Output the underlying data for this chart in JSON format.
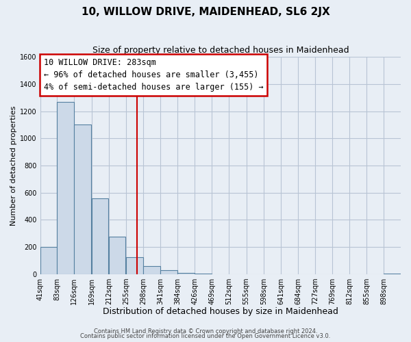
{
  "title": "10, WILLOW DRIVE, MAIDENHEAD, SL6 2JX",
  "subtitle": "Size of property relative to detached houses in Maidenhead",
  "xlabel": "Distribution of detached houses by size in Maidenhead",
  "ylabel": "Number of detached properties",
  "footnote1": "Contains HM Land Registry data © Crown copyright and database right 2024.",
  "footnote2": "Contains public sector information licensed under the Open Government Licence v3.0.",
  "bin_edges": [
    41,
    83,
    126,
    169,
    212,
    255,
    298,
    341,
    384,
    426,
    469,
    512,
    555,
    598,
    641,
    684,
    727,
    769,
    812,
    855,
    898
  ],
  "bin_counts": [
    200,
    1270,
    1100,
    560,
    275,
    125,
    60,
    30,
    10,
    5,
    0,
    0,
    0,
    0,
    0,
    0,
    0,
    0,
    0,
    0,
    5
  ],
  "bar_color": "#ccd9e8",
  "bar_edge_color": "#5580a0",
  "property_size": 283,
  "property_line_color": "#cc0000",
  "annotation_text_line1": "10 WILLOW DRIVE: 283sqm",
  "annotation_text_line2": "← 96% of detached houses are smaller (3,455)",
  "annotation_text_line3": "4% of semi-detached houses are larger (155) →",
  "annotation_box_facecolor": "#ffffff",
  "annotation_box_edgecolor": "#cc0000",
  "ylim": [
    0,
    1600
  ],
  "xlim_left": 41,
  "xlim_right": 940,
  "bg_color": "#e8eef5",
  "grid_color": "#b8c4d4",
  "title_fontsize": 11,
  "subtitle_fontsize": 9,
  "xlabel_fontsize": 9,
  "ylabel_fontsize": 8,
  "tick_fontsize": 7,
  "annotation_fontsize": 8.5,
  "yticks": [
    0,
    200,
    400,
    600,
    800,
    1000,
    1200,
    1400,
    1600
  ]
}
